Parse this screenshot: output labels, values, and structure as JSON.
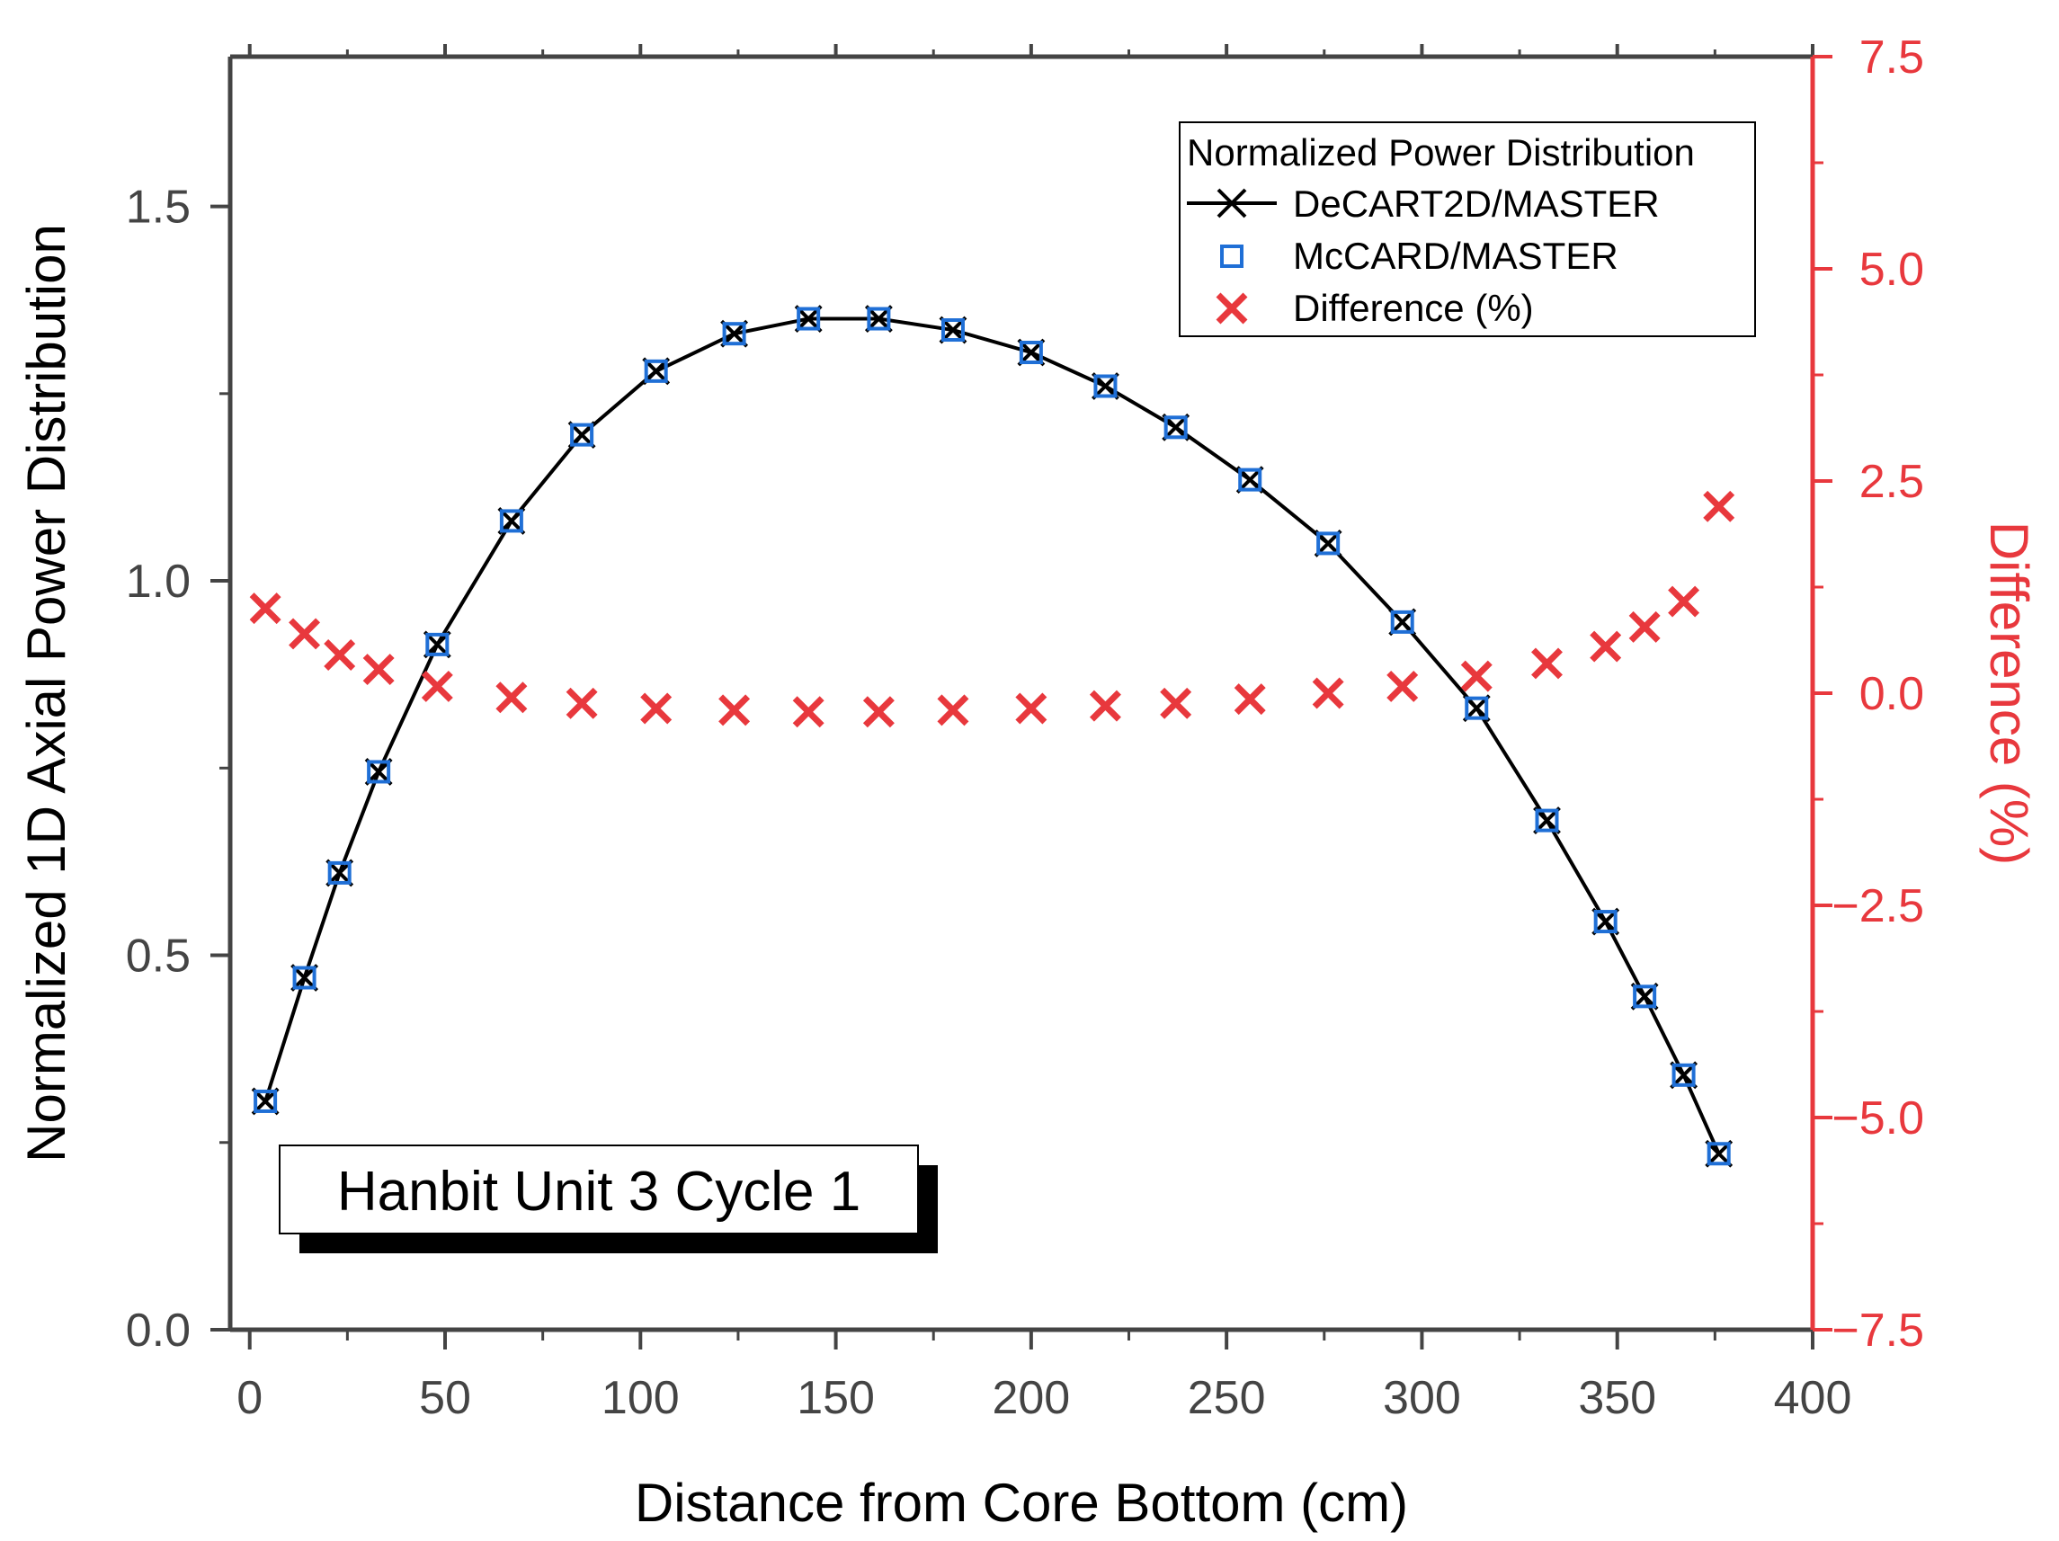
{
  "chart_data": {
    "type": "line",
    "title": "",
    "annotation": "Hanbit Unit 3 Cycle 1",
    "xlabel": "Distance from Core Bottom (cm)",
    "ylabel": "Normalized 1D Axial Power Distribution",
    "y2label": "Difference (%)",
    "xlim": [
      -5,
      400
    ],
    "ylim": [
      0,
      1.7
    ],
    "y2lim": [
      -7.5,
      7.5
    ],
    "x_ticks": [
      0,
      50,
      100,
      150,
      200,
      250,
      300,
      350,
      400
    ],
    "x_tick_labels": [
      "0",
      "50",
      "100",
      "150",
      "200",
      "250",
      "300",
      "350",
      "400"
    ],
    "y_ticks": [
      0,
      0.5,
      1.0,
      1.5
    ],
    "y_tick_labels": [
      "0.0",
      "0.5",
      "1.0",
      "1.5"
    ],
    "y2_ticks": [
      -7.5,
      -5.0,
      -2.5,
      0.0,
      2.5,
      5.0,
      7.5
    ],
    "y2_tick_labels": [
      "−7.5",
      "−5.0",
      "−2.5",
      "0.0",
      "2.5",
      "5.0",
      "7.5"
    ],
    "grid": false,
    "legend": {
      "title": "Normalized Power Distribution",
      "position": "top-right",
      "entries": [
        "DeCART2D/MASTER",
        "McCARD/MASTER",
        "Difference (%)"
      ]
    },
    "colors": {
      "decart": "#000000",
      "mccard": "#1f6fd6",
      "difference": "#e8383d",
      "right_axis": "#e8383d"
    },
    "x": [
      4,
      14,
      23,
      33,
      48,
      67,
      85,
      104,
      124,
      143,
      161,
      180,
      200,
      219,
      237,
      256,
      276,
      295,
      314,
      332,
      347,
      357,
      367,
      376
    ],
    "series": [
      {
        "name": "DeCART2D/MASTER",
        "axis": "left",
        "style": "line+x",
        "values": [
          0.305,
          0.47,
          0.61,
          0.745,
          0.915,
          1.08,
          1.195,
          1.28,
          1.33,
          1.35,
          1.35,
          1.335,
          1.305,
          1.26,
          1.205,
          1.135,
          1.05,
          0.945,
          0.83,
          0.68,
          0.545,
          0.445,
          0.34,
          0.235
        ]
      },
      {
        "name": "McCARD/MASTER",
        "axis": "left",
        "style": "open-square",
        "values": [
          0.305,
          0.47,
          0.61,
          0.745,
          0.915,
          1.08,
          1.195,
          1.28,
          1.33,
          1.35,
          1.35,
          1.335,
          1.305,
          1.26,
          1.205,
          1.135,
          1.05,
          0.945,
          0.83,
          0.68,
          0.545,
          0.445,
          0.34,
          0.235
        ]
      },
      {
        "name": "Difference (%)",
        "axis": "right",
        "style": "x-marker",
        "values": [
          1.0,
          0.7,
          0.45,
          0.28,
          0.08,
          -0.05,
          -0.12,
          -0.18,
          -0.2,
          -0.22,
          -0.22,
          -0.2,
          -0.18,
          -0.15,
          -0.12,
          -0.07,
          0.0,
          0.08,
          0.2,
          0.35,
          0.55,
          0.78,
          1.08,
          2.2
        ]
      }
    ]
  }
}
